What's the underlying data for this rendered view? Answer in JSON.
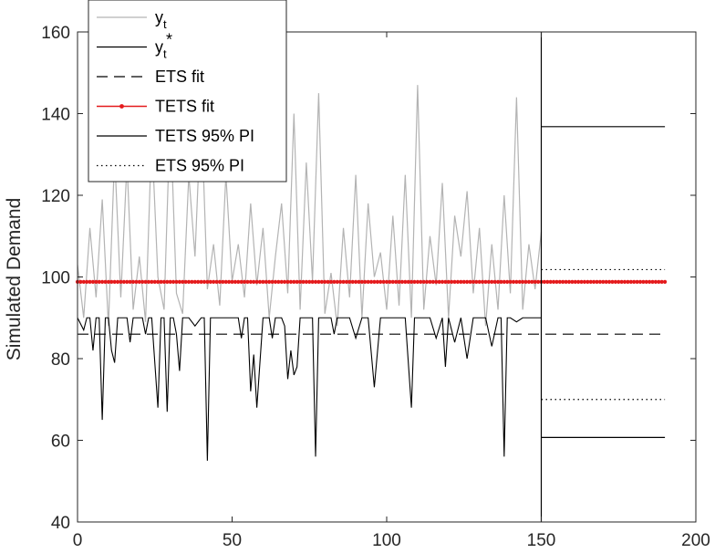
{
  "chart_data": {
    "type": "line",
    "ylabel": "Simulated Demand",
    "xlim": [
      0,
      200
    ],
    "ylim": [
      40,
      160
    ],
    "xticks": [
      0,
      50,
      100,
      150,
      200
    ],
    "yticks": [
      40,
      60,
      80,
      100,
      120,
      140,
      160
    ],
    "grid": false,
    "legend_position": "top-left",
    "forecast_origin": 150,
    "colors": {
      "y_t": "#b3b3b3",
      "y_star": "#000000",
      "ets_fit": "#000000",
      "tets_fit": "#e41a1c",
      "tets_pi": "#000000",
      "ets_pi": "#000000"
    },
    "legend": [
      {
        "key": "y_t",
        "main": "y",
        "sub": "t",
        "sup": ""
      },
      {
        "key": "y_star",
        "main": "y",
        "sub": "t",
        "sup": "*"
      },
      {
        "key": "ets_fit",
        "main": "ETS fit",
        "sub": "",
        "sup": ""
      },
      {
        "key": "tets_fit",
        "main": "TETS fit",
        "sub": "",
        "sup": ""
      },
      {
        "key": "tets_pi",
        "main": "TETS 95% PI",
        "sub": "",
        "sup": ""
      },
      {
        "key": "ets_pi",
        "main": "ETS 95% PI",
        "sub": "",
        "sup": ""
      }
    ],
    "series": {
      "y_t": {
        "x": [
          0,
          2,
          4,
          6,
          8,
          10,
          12,
          14,
          16,
          18,
          20,
          22,
          24,
          26,
          28,
          30,
          32,
          34,
          36,
          38,
          40,
          42,
          44,
          46,
          48,
          50,
          52,
          54,
          56,
          58,
          60,
          62,
          64,
          66,
          68,
          70,
          72,
          74,
          76,
          78,
          80,
          82,
          84,
          86,
          88,
          90,
          92,
          94,
          96,
          98,
          100,
          102,
          104,
          106,
          108,
          110,
          112,
          114,
          116,
          118,
          120,
          122,
          124,
          126,
          128,
          130,
          132,
          134,
          136,
          138,
          140,
          142,
          144,
          146,
          148,
          150
        ],
        "y": [
          103,
          90,
          112,
          95,
          119,
          88,
          130,
          95,
          128,
          92,
          105,
          89,
          135,
          100,
          92,
          140,
          96,
          91,
          125,
          105,
          142,
          97,
          108,
          93,
          125,
          99,
          108,
          95,
          118,
          98,
          112,
          90,
          105,
          118,
          96,
          140,
          92,
          128,
          99,
          145,
          91,
          101,
          88,
          112,
          95,
          125,
          90,
          118,
          100,
          106,
          92,
          115,
          93,
          125,
          90,
          147,
          92,
          110,
          98,
          123,
          90,
          115,
          105,
          121,
          96,
          112,
          88,
          108,
          92,
          120,
          96,
          144,
          92,
          108,
          97,
          111
        ]
      },
      "y_star": {
        "x": [
          0,
          2,
          3,
          4,
          5,
          6,
          7,
          8,
          9,
          10,
          11,
          12,
          13,
          14,
          15,
          16,
          17,
          18,
          20,
          21,
          22,
          23,
          24,
          26,
          27,
          28,
          29,
          30,
          31,
          32,
          33,
          34,
          36,
          38,
          40,
          41,
          42,
          43,
          44,
          46,
          48,
          50,
          52,
          53,
          54,
          55,
          56,
          57,
          58,
          60,
          62,
          63,
          64,
          66,
          67,
          68,
          69,
          70,
          71,
          72,
          74,
          76,
          77,
          78,
          80,
          82,
          83,
          84,
          86,
          88,
          90,
          92,
          94,
          96,
          98,
          99,
          100,
          102,
          104,
          106,
          108,
          109,
          110,
          112,
          114,
          116,
          118,
          119,
          120,
          122,
          124,
          126,
          128,
          130,
          132,
          134,
          136,
          137,
          138,
          139,
          140,
          142,
          144,
          146,
          148,
          150
        ],
        "y": [
          90,
          87,
          90,
          90,
          82,
          90,
          90,
          65,
          90,
          90,
          82,
          79,
          90,
          90,
          90,
          90,
          84,
          90,
          90,
          90,
          86,
          90,
          90,
          68,
          90,
          90,
          67,
          90,
          90,
          86,
          77,
          90,
          90,
          88,
          90,
          90,
          55,
          90,
          90,
          90,
          90,
          90,
          90,
          85,
          90,
          90,
          72,
          81,
          68,
          90,
          90,
          85,
          90,
          90,
          88,
          75,
          82,
          76,
          78,
          90,
          90,
          90,
          56,
          90,
          90,
          90,
          86,
          90,
          90,
          90,
          85,
          90,
          90,
          73,
          90,
          90,
          90,
          90,
          90,
          90,
          68,
          90,
          90,
          90,
          90,
          85,
          90,
          78,
          90,
          84,
          90,
          80,
          90,
          90,
          90,
          83,
          90,
          90,
          56,
          90,
          90,
          89,
          90,
          90,
          90,
          90
        ]
      },
      "ets_fit": {
        "x": [
          0,
          190
        ],
        "y": [
          86,
          86
        ]
      },
      "tets_fit": {
        "start": 0,
        "end": 190,
        "step": 1,
        "value": 98.8
      },
      "tets_pi": {
        "x": [
          150,
          190
        ],
        "upper": 136.8,
        "lower": 60.7
      },
      "ets_pi": {
        "x": [
          150,
          190
        ],
        "upper": 101.8,
        "lower": 70.0
      }
    }
  }
}
